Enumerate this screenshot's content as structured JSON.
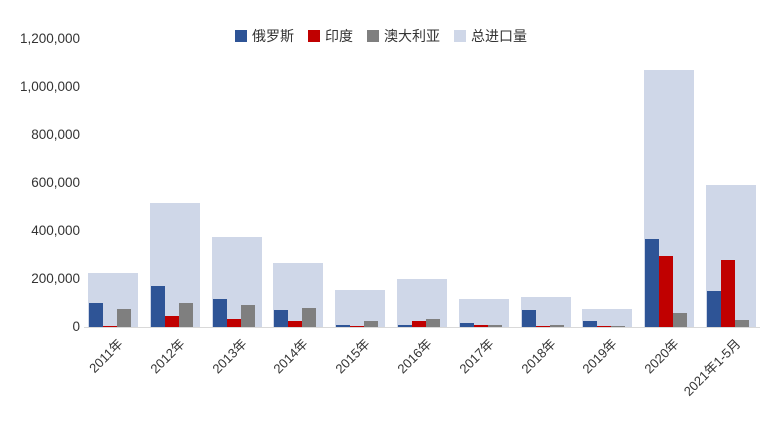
{
  "chart_data": {
    "type": "bar",
    "title": "",
    "xlabel": "",
    "ylabel": "",
    "categories": [
      "2011年",
      "2012年",
      "2013年",
      "2014年",
      "2015年",
      "2016年",
      "2017年",
      "2018年",
      "2019年",
      "2020年",
      "2021年1-5月"
    ],
    "series": [
      {
        "name": "俄罗斯",
        "color": "#2e5496",
        "role": "narrow",
        "values": [
          100000,
          170000,
          115000,
          70000,
          10000,
          8000,
          15000,
          70000,
          25000,
          365000,
          150000
        ]
      },
      {
        "name": "印度",
        "color": "#c00000",
        "role": "narrow",
        "values": [
          5000,
          45000,
          35000,
          25000,
          5000,
          25000,
          8000,
          3000,
          5000,
          295000,
          280000
        ]
      },
      {
        "name": "澳大利亚",
        "color": "#7f7f7f",
        "role": "narrow",
        "values": [
          75000,
          100000,
          90000,
          80000,
          25000,
          35000,
          10000,
          8000,
          5000,
          60000,
          30000
        ]
      },
      {
        "name": "总进口量",
        "color": "#cfd7e8",
        "role": "background",
        "values": [
          225000,
          515000,
          375000,
          268000,
          155000,
          200000,
          115000,
          125000,
          75000,
          1070000,
          590000
        ]
      }
    ],
    "ylim": [
      0,
      1200000
    ],
    "ytick_interval": 200000,
    "ytick_labels": [
      "0",
      "200,000",
      "400,000",
      "600,000",
      "800,000",
      "1,000,000",
      "1,200,000"
    ],
    "legend_position": "top",
    "grid": false,
    "axis_line_color": "#d9d9d9",
    "background_color": "#ffffff"
  }
}
